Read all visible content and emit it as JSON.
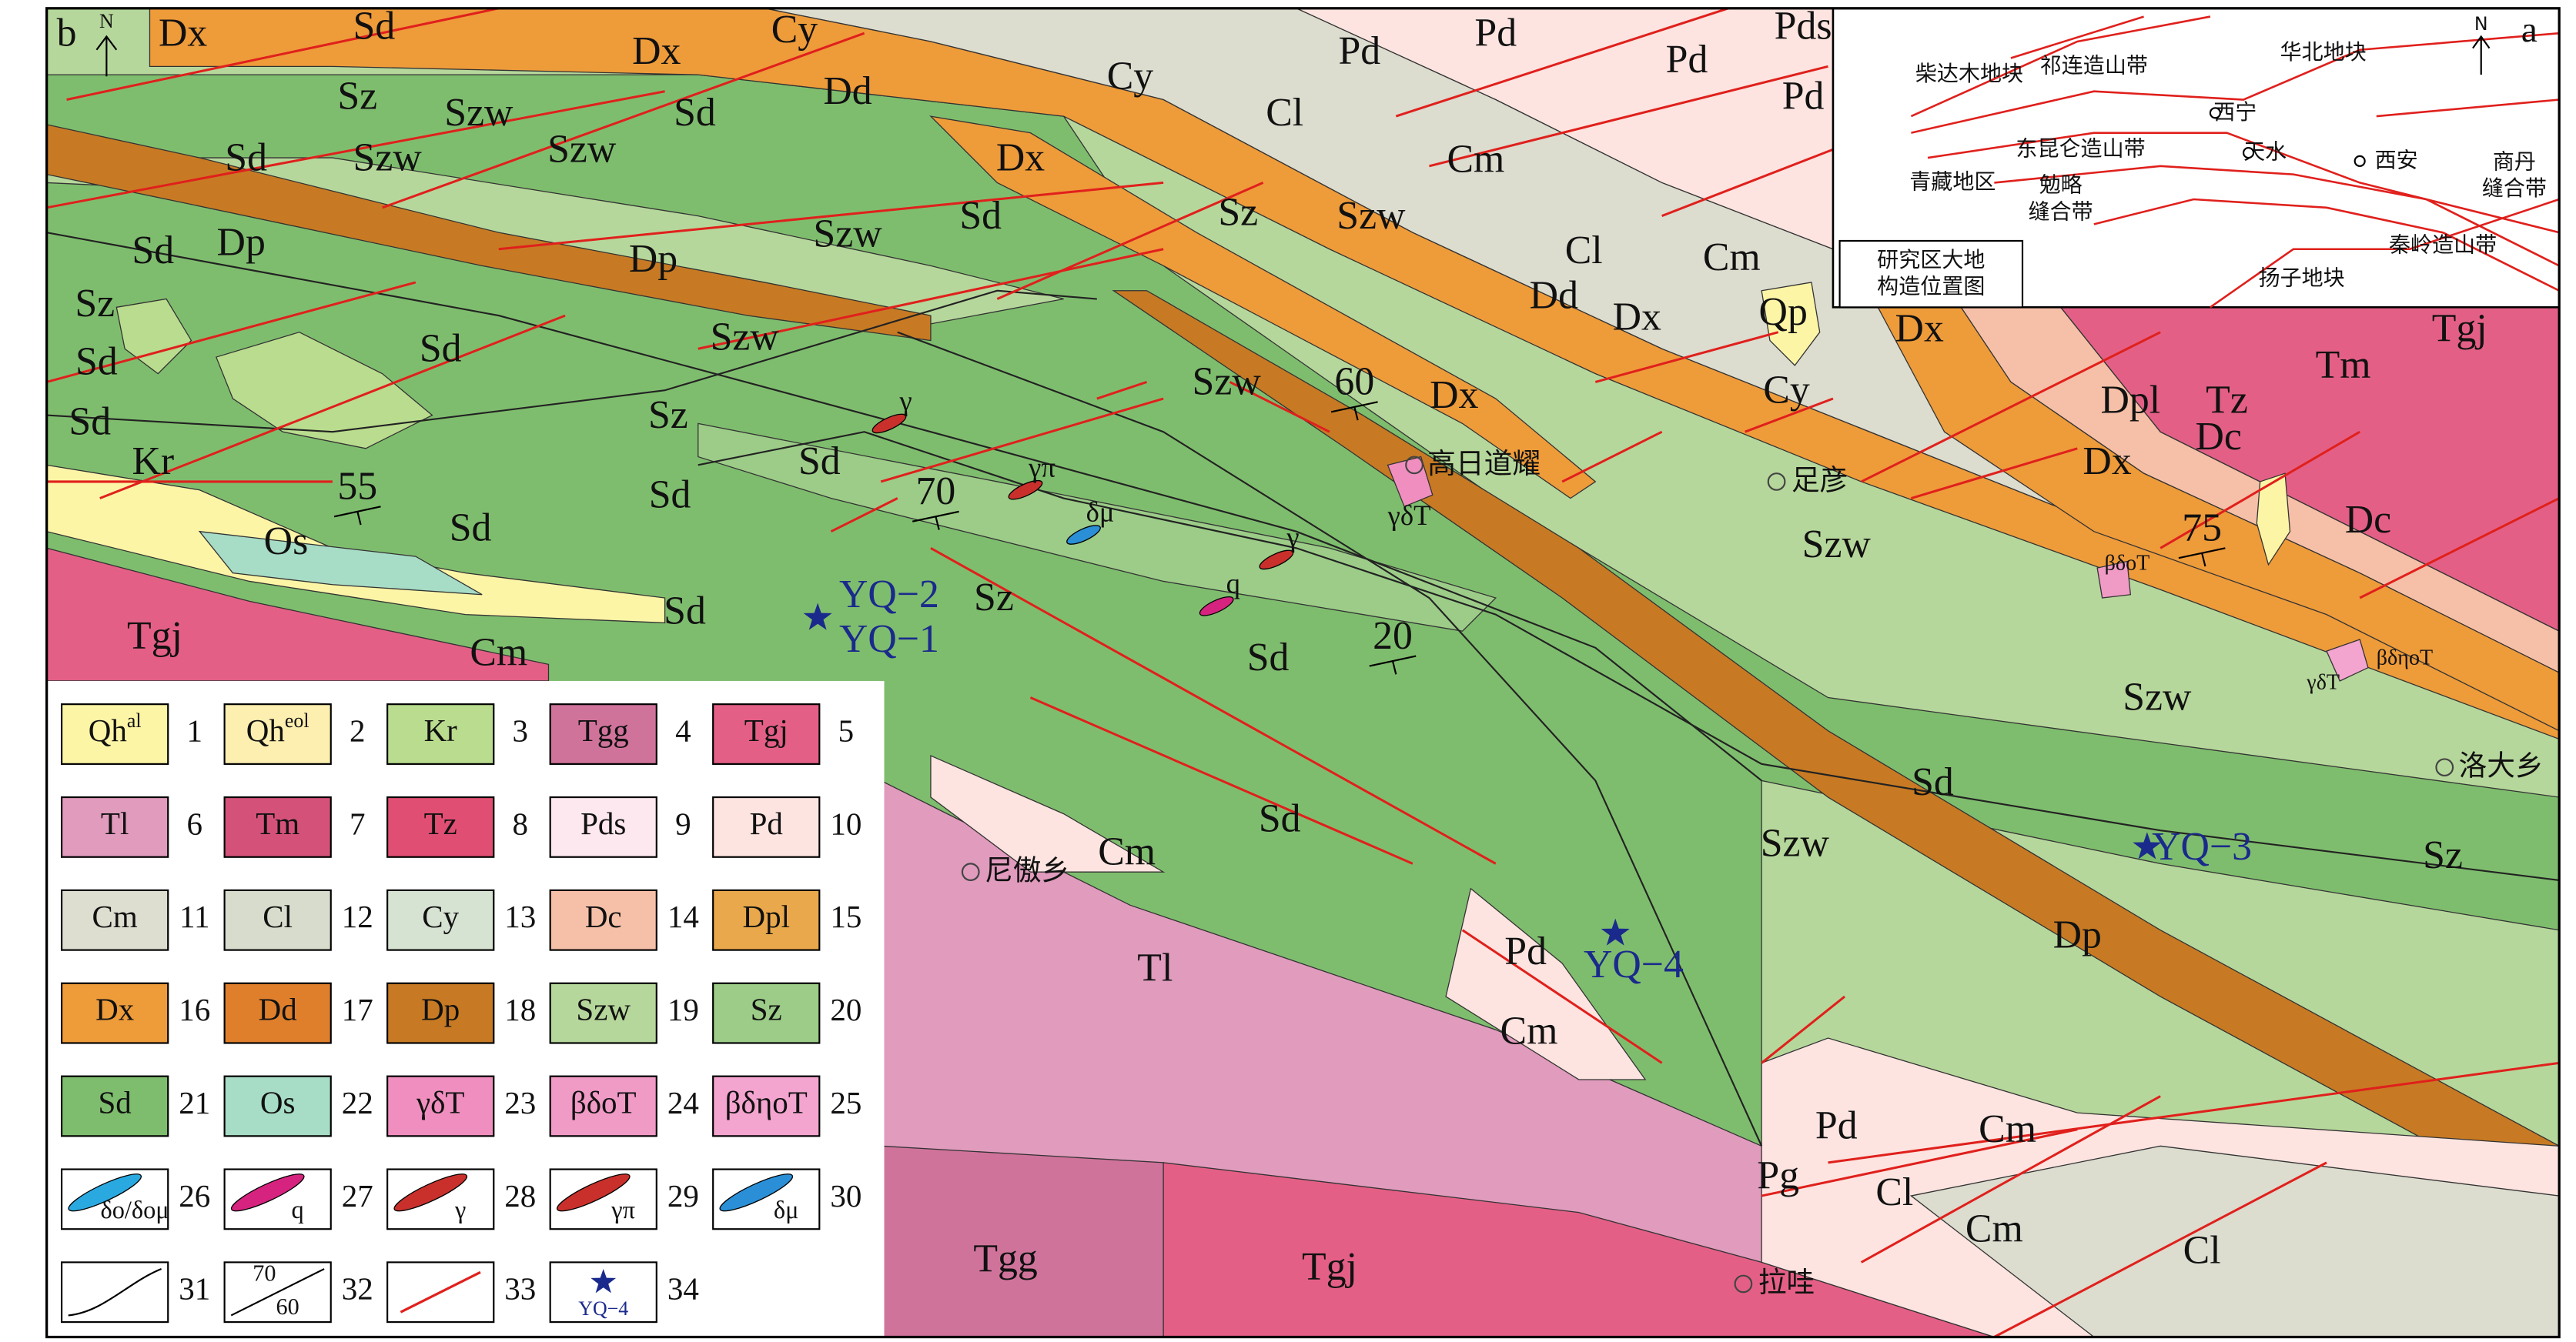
{
  "map": {
    "panel_label": "b",
    "north": "N",
    "units": [
      "Dx",
      "Sd",
      "Cy",
      "Dx",
      "Dd",
      "Cy",
      "Pd",
      "Pd",
      "Pd",
      "Pds",
      "Pd",
      "Sz",
      "Szw",
      "Sd",
      "Cl",
      "Cm",
      "Sd",
      "Szw",
      "Szw",
      "Dx",
      "Sz",
      "Szw",
      "Szw",
      "Sd",
      "Sd",
      "Dp",
      "Dp",
      "Cl",
      "Cm",
      "Qp",
      "Dd",
      "Dx",
      "Dx",
      "Sz",
      "Szw",
      "Sd",
      "Sd",
      "Cy",
      "Szw",
      "Dx",
      "Tm",
      "Tgj",
      "Tz",
      "Dpl",
      "Dc",
      "Sd",
      "Sz",
      "Kr",
      "Sd",
      "Dx",
      "Szw",
      "Sd",
      "Sd",
      "Os",
      "Dc",
      "Sd",
      "Sz",
      "Tgj",
      "Cm",
      "Sd",
      "Szw",
      "Sd",
      "Sd",
      "Cm",
      "Szw",
      "Sz",
      "Tl",
      "Dp",
      "Pd",
      "Cm",
      "Pd",
      "Cm",
      "Pg",
      "Cl",
      "Cm",
      "Cl",
      "Tgg",
      "Tgj"
    ],
    "dips": [
      55,
      70,
      60,
      20,
      75
    ],
    "places": [
      "高日道耀",
      "足彦",
      "尼傲乡",
      "拉哇",
      "洛大乡"
    ],
    "samples": [
      "YQ−2",
      "YQ−1",
      "YQ−3",
      "YQ−4"
    ],
    "intrusions": [
      "γ",
      "γπ",
      "δμ",
      "γ",
      "q",
      "γδT",
      "βδοT",
      "γδT",
      "βδηοT"
    ]
  },
  "inset": {
    "panel_label": "a",
    "north": "N",
    "labels": [
      {
        "lines": [
          "祁连造山带"
        ]
      },
      {
        "lines": [
          "华北地块"
        ]
      },
      {
        "lines": [
          "柴达木地块"
        ]
      },
      {
        "lines": [
          "西宁"
        ]
      },
      {
        "lines": [
          "东昆仑造山带"
        ]
      },
      {
        "lines": [
          "天水"
        ]
      },
      {
        "lines": [
          "西安"
        ]
      },
      {
        "lines": [
          "商丹",
          "缝合带"
        ]
      },
      {
        "lines": [
          "青藏地区"
        ]
      },
      {
        "lines": [
          "勉略",
          "缝合带"
        ]
      },
      {
        "lines": [
          "秦岭造山带"
        ]
      },
      {
        "lines": [
          "研究区大地",
          "构造位置图"
        ]
      },
      {
        "lines": [
          "扬子地块"
        ]
      }
    ]
  },
  "legend": {
    "items": [
      {
        "number": 1,
        "label": "Qh",
        "sup": "al",
        "color": "#fdf5a6"
      },
      {
        "number": 2,
        "label": "Qh",
        "sup": "eol",
        "color": "#fdefb0"
      },
      {
        "number": 3,
        "label": "Kr",
        "color": "#b9dc8e"
      },
      {
        "number": 4,
        "label": "Tgg",
        "color": "#d0739b"
      },
      {
        "number": 5,
        "label": "Tgj",
        "color": "#e45f86"
      },
      {
        "number": 6,
        "label": "Tl",
        "color": "#e09bbd"
      },
      {
        "number": 7,
        "label": "Tm",
        "color": "#d4527a"
      },
      {
        "number": 8,
        "label": "Tz",
        "color": "#e04f73"
      },
      {
        "number": 9,
        "label": "Pds",
        "color": "#fce8ee"
      },
      {
        "number": 10,
        "label": "Pd",
        "color": "#fde4e0"
      },
      {
        "number": 11,
        "label": "Cm",
        "color": "#ddddd0"
      },
      {
        "number": 12,
        "label": "Cl",
        "color": "#d8dccc"
      },
      {
        "number": 13,
        "label": "Cy",
        "color": "#d6e2d2"
      },
      {
        "number": 14,
        "label": "Dc",
        "color": "#f6c0a8"
      },
      {
        "number": 15,
        "label": "Dpl",
        "color": "#e9a84c"
      },
      {
        "number": 16,
        "label": "Dx",
        "color": "#ee9b3a"
      },
      {
        "number": 17,
        "label": "Dd",
        "color": "#df7f2c"
      },
      {
        "number": 18,
        "label": "Dp",
        "color": "#c77a23"
      },
      {
        "number": 19,
        "label": "Szw",
        "color": "#b6d79b"
      },
      {
        "number": 20,
        "label": "Sz",
        "color": "#9ccc88"
      },
      {
        "number": 21,
        "label": "Sd",
        "color": "#7fbd6e"
      },
      {
        "number": 22,
        "label": "Os",
        "color": "#a7dcc6"
      },
      {
        "number": 23,
        "label": "γδT",
        "color": "#f08fbf"
      },
      {
        "number": 24,
        "label": "βδοT",
        "color": "#f09ac6"
      },
      {
        "number": 25,
        "label": "βδηοT",
        "color": "#f3a4cf"
      },
      {
        "number": 26,
        "label": "δο/δομ",
        "color": "#29a9e0"
      },
      {
        "number": 27,
        "label": "q",
        "color": "#d6237f"
      },
      {
        "number": 28,
        "label": "γ",
        "color": "#c9302c"
      },
      {
        "number": 29,
        "label": "γπ",
        "color": "#c9302c"
      },
      {
        "number": 30,
        "label": "δμ",
        "color": "#2a8fd6"
      },
      {
        "number": 31
      },
      {
        "number": 32,
        "labels": [
          70,
          60
        ]
      },
      {
        "number": 33,
        "color": "#e0201c"
      },
      {
        "number": 34,
        "label": "YQ−4",
        "color": "#1a2a8c"
      }
    ]
  }
}
